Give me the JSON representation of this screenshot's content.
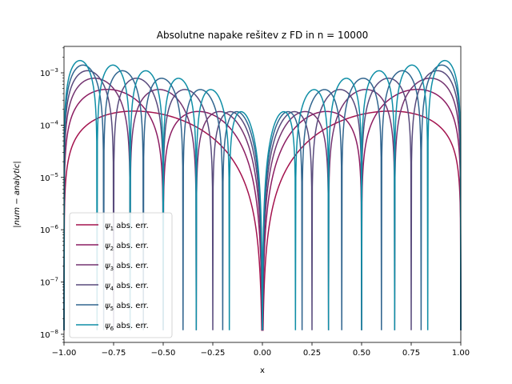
{
  "chart_data": {
    "type": "line",
    "title": "Absolutne napake rešitev z FD in n = 10000",
    "xlabel": "x",
    "ylabel": "|num − analytic|",
    "xlim": [
      -1.0,
      1.0
    ],
    "ylim": [
      7e-09,
      0.0032
    ],
    "yscale": "log",
    "grid": false,
    "legend_position": "lower-left",
    "x_ticks": [
      -1.0,
      -0.75,
      -0.5,
      -0.25,
      0.0,
      0.25,
      0.5,
      0.75,
      1.0
    ],
    "x_tick_labels": [
      "−1.00",
      "−0.75",
      "−0.50",
      "−0.25",
      "0.00",
      "0.25",
      "0.50",
      "0.75",
      "1.00"
    ],
    "y_ticks": [
      1e-08,
      1e-07,
      1e-06,
      1e-05,
      0.0001,
      0.001
    ],
    "y_tick_labels": [
      {
        "base": "10",
        "exp": "−8"
      },
      {
        "base": "10",
        "exp": "−7"
      },
      {
        "base": "10",
        "exp": "−6"
      },
      {
        "base": "10",
        "exp": "−5"
      },
      {
        "base": "10",
        "exp": "−4"
      },
      {
        "base": "10",
        "exp": "−3"
      }
    ],
    "series": [
      {
        "symbol": "ψ",
        "sub": "1",
        "suffix": " abs. err.",
        "color": "#a4134e",
        "n": 1,
        "peak": 0.00032
      },
      {
        "symbol": "ψ",
        "sub": "2",
        "suffix": " abs. err.",
        "color": "#8c1d62",
        "n": 2,
        "peak": 0.00063
      },
      {
        "symbol": "ψ",
        "sub": "3",
        "suffix": " abs. err.",
        "color": "#733470",
        "n": 3,
        "peak": 0.00094
      },
      {
        "symbol": "ψ",
        "sub": "4",
        "suffix": " abs. err.",
        "color": "#584a7c",
        "n": 4,
        "peak": 0.00125
      },
      {
        "symbol": "ψ",
        "sub": "5",
        "suffix": " abs. err.",
        "color": "#31658f",
        "n": 5,
        "peak": 0.00156
      },
      {
        "symbol": "ψ",
        "sub": "6",
        "suffix": " abs. err.",
        "color": "#0f8ea6",
        "n": 6,
        "peak": 0.00187
      }
    ]
  }
}
